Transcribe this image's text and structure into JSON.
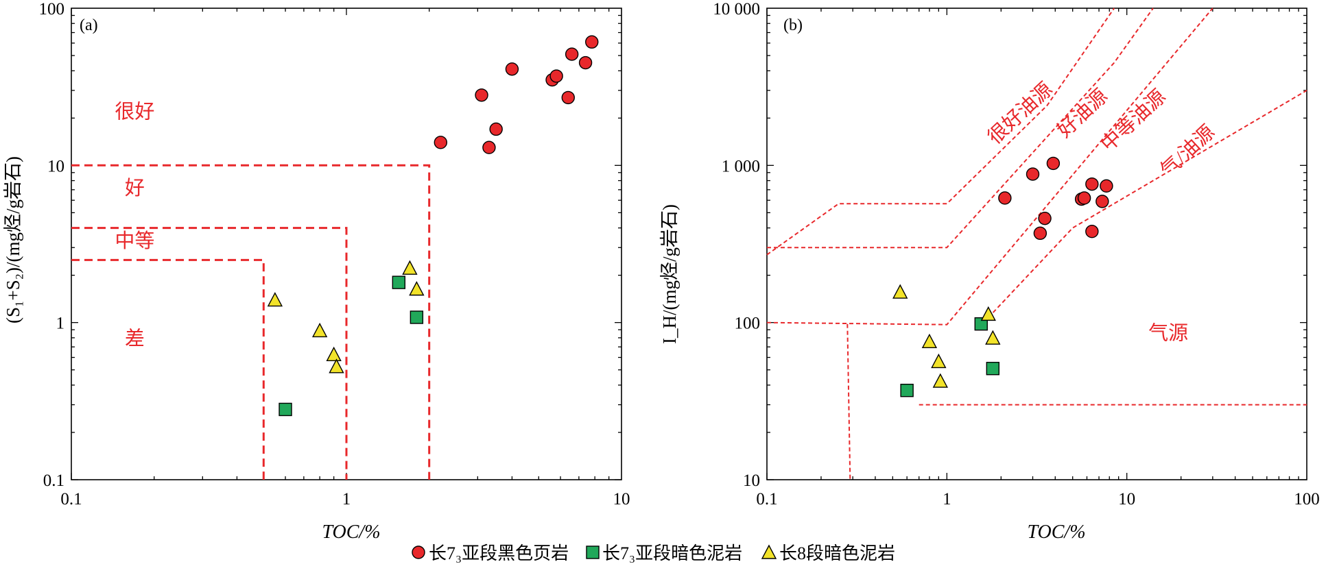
{
  "chart_data": [
    {
      "panel_label": "(a)",
      "type": "scatter",
      "x_scale": "log",
      "y_scale": "log",
      "xlim": [
        0.1,
        10
      ],
      "ylim": [
        0.1,
        100
      ],
      "xticks": [
        0.1,
        1,
        10
      ],
      "xtick_labels": [
        "0.1",
        "1",
        "10"
      ],
      "yticks": [
        0.1,
        1,
        10,
        100
      ],
      "ytick_labels": [
        "0.1",
        "1",
        "10",
        "100"
      ],
      "xlabel": "TOC/%",
      "ylabel": "(S₁+S₂)/(mg烃/g岩石)",
      "grid": false,
      "regions": [
        {
          "label": "很好",
          "x": 0.17,
          "y": 20
        },
        {
          "label": "好",
          "x": 0.17,
          "y": 6.5
        },
        {
          "label": "中等",
          "x": 0.17,
          "y": 3.0
        },
        {
          "label": "差",
          "x": 0.17,
          "y": 0.72
        }
      ],
      "boundaries": [
        {
          "label": "差",
          "points": [
            [
              0.1,
              2.5
            ],
            [
              0.5,
              2.5
            ],
            [
              0.5,
              0.1
            ]
          ]
        },
        {
          "label": "中等",
          "points": [
            [
              0.1,
              4
            ],
            [
              1,
              4
            ],
            [
              1,
              0.1
            ]
          ]
        },
        {
          "label": "好",
          "points": [
            [
              0.1,
              10
            ],
            [
              2,
              10
            ],
            [
              2,
              0.1
            ]
          ]
        }
      ],
      "series": [
        {
          "name": "长7₃亚段黑色页岩",
          "marker": "circle",
          "color": "#e8282b",
          "points": [
            [
              2.2,
              14
            ],
            [
              3.1,
              28
            ],
            [
              3.5,
              17
            ],
            [
              3.3,
              13
            ],
            [
              4.0,
              41
            ],
            [
              5.6,
              35
            ],
            [
              5.8,
              37
            ],
            [
              6.4,
              27
            ],
            [
              6.6,
              51
            ],
            [
              7.4,
              45
            ],
            [
              7.8,
              61
            ]
          ]
        },
        {
          "name": "长7₃亚段暗色泥岩",
          "marker": "square",
          "color": "#21a85a",
          "points": [
            [
              1.55,
              1.8
            ],
            [
              1.8,
              1.08
            ],
            [
              0.6,
              0.28
            ]
          ]
        },
        {
          "name": "长8段暗色泥岩",
          "marker": "triangle",
          "color": "#f2e32a",
          "points": [
            [
              0.55,
              1.38
            ],
            [
              0.8,
              0.88
            ],
            [
              0.9,
              0.62
            ],
            [
              0.92,
              0.52
            ],
            [
              1.7,
              2.2
            ],
            [
              1.8,
              1.62
            ]
          ]
        }
      ]
    },
    {
      "panel_label": "(b)",
      "type": "scatter",
      "x_scale": "log",
      "y_scale": "log",
      "xlim": [
        0.1,
        100
      ],
      "ylim": [
        10,
        10000
      ],
      "xticks": [
        0.1,
        1,
        10,
        100
      ],
      "xtick_labels": [
        "0.1",
        "1",
        "10",
        "100"
      ],
      "yticks": [
        10,
        100,
        1000,
        10000
      ],
      "ytick_labels": [
        "10",
        "100",
        "1 000",
        "10 000"
      ],
      "xlabel": "TOC/%",
      "ylabel": "I_H/(mg烃/g岩石)",
      "grid": false,
      "regions": [
        {
          "label": "很好油源",
          "x": 2.7,
          "y": 2000,
          "rotation": -43
        },
        {
          "label": "好油源",
          "x": 6.0,
          "y": 2000,
          "rotation": -43
        },
        {
          "label": "中等油源",
          "x": 11.5,
          "y": 1800,
          "rotation": -43
        },
        {
          "label": "气/油源",
          "x": 23,
          "y": 1150,
          "rotation": -43
        },
        {
          "label": "气源",
          "x": 17,
          "y": 78,
          "rotation": 0
        }
      ],
      "boundaries": [
        {
          "points": [
            [
              0.1,
              270
            ],
            [
              0.25,
              570
            ],
            [
              1,
              570
            ],
            [
              3.6,
              2400
            ],
            [
              8.5,
              10000
            ]
          ]
        },
        {
          "points": [
            [
              0.1,
              300
            ],
            [
              1,
              300
            ],
            [
              8.5,
              4500
            ],
            [
              14,
              10000
            ]
          ]
        },
        {
          "points": [
            [
              0.1,
              100
            ],
            [
              1,
              97
            ],
            [
              30,
              10000
            ]
          ]
        },
        {
          "points": [
            [
              0.28,
              98
            ],
            [
              0.29,
              10
            ]
          ]
        },
        {
          "points": [
            [
              1.6,
              100
            ],
            [
              5,
              400
            ],
            [
              100,
              3000
            ]
          ]
        },
        {
          "points": [
            [
              0.7,
              30
            ],
            [
              100,
              30
            ]
          ]
        }
      ],
      "series": [
        {
          "name": "长7₃亚段黑色页岩",
          "marker": "circle",
          "color": "#e8282b",
          "points": [
            [
              2.1,
              620
            ],
            [
              3.0,
              880
            ],
            [
              3.9,
              1030
            ],
            [
              3.3,
              370
            ],
            [
              3.5,
              460
            ],
            [
              5.6,
              610
            ],
            [
              5.8,
              620
            ],
            [
              6.4,
              760
            ],
            [
              6.4,
              380
            ],
            [
              7.3,
              590
            ],
            [
              7.7,
              740
            ]
          ]
        },
        {
          "name": "长7₃亚段暗色泥岩",
          "marker": "square",
          "color": "#21a85a",
          "points": [
            [
              1.55,
              98
            ],
            [
              1.8,
              51
            ],
            [
              0.6,
              37
            ]
          ]
        },
        {
          "name": "长8段暗色泥岩",
          "marker": "triangle",
          "color": "#f2e32a",
          "points": [
            [
              0.55,
              155
            ],
            [
              0.8,
              75
            ],
            [
              0.9,
              56
            ],
            [
              0.92,
              42
            ],
            [
              1.7,
              112
            ],
            [
              1.8,
              79
            ]
          ]
        }
      ]
    }
  ],
  "legend": {
    "items": [
      {
        "text": "长7₃亚段黑色页岩",
        "marker": "circle",
        "color": "#e8282b"
      },
      {
        "text": "长7₃亚段暗色泥岩",
        "marker": "square",
        "color": "#21a85a"
      },
      {
        "text": "长8段暗色泥岩",
        "marker": "triangle",
        "color": "#f2e32a"
      }
    ]
  },
  "style": {
    "line_color": "#e8282b",
    "text_color": "#e8282b"
  }
}
